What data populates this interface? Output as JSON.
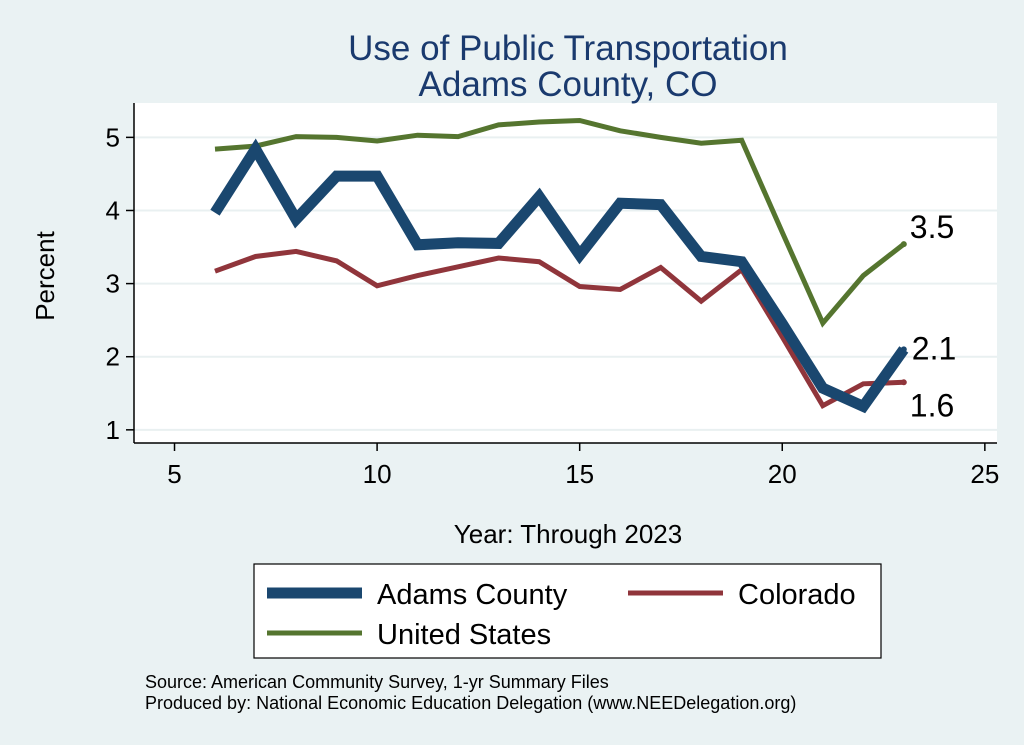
{
  "chart_data": {
    "type": "line",
    "title": [
      "Use of Public Transportation",
      "Adams County, CO"
    ],
    "xlabel": "Year: Through 2023",
    "ylabel": "Percent",
    "xlim": [
      4,
      25.3
    ],
    "ylim": [
      0.82,
      5.47
    ],
    "xticks": [
      5,
      10,
      15,
      20,
      25
    ],
    "yticks": [
      1,
      2,
      3,
      4,
      5
    ],
    "grid": true,
    "legend_position": "bottom",
    "x": [
      6,
      7,
      8,
      9,
      10,
      11,
      12,
      13,
      14,
      15,
      16,
      17,
      18,
      19,
      20,
      21,
      22,
      23
    ],
    "series": [
      {
        "name": "Adams County",
        "color": "#1a476f",
        "values": [
          3.97,
          4.84,
          3.88,
          4.47,
          4.47,
          3.53,
          3.56,
          3.55,
          4.19,
          3.39,
          4.1,
          4.08,
          3.37,
          3.3,
          2.45,
          1.57,
          1.32,
          2.1
        ],
        "end_label": "2.1"
      },
      {
        "name": "Colorado",
        "color": "#90353b",
        "values": [
          3.17,
          3.37,
          3.44,
          3.31,
          2.97,
          3.11,
          3.23,
          3.35,
          3.3,
          2.96,
          2.92,
          3.22,
          2.76,
          3.19,
          2.27,
          1.33,
          1.63,
          1.65
        ],
        "end_label": "1.6"
      },
      {
        "name": "United States",
        "color": "#55752f",
        "values": [
          4.84,
          4.88,
          5.01,
          5.0,
          4.95,
          5.03,
          5.01,
          5.17,
          5.21,
          5.23,
          5.09,
          5.0,
          4.92,
          4.96,
          3.7,
          2.46,
          3.11,
          3.54
        ],
        "end_label": "3.5"
      }
    ],
    "legend": [
      "Adams County",
      "Colorado",
      "United States"
    ],
    "notes": [
      "Source: American Community Survey, 1-yr Summary Files",
      "Produced by: National Economic Education Delegation (www.NEEDelegation.org)"
    ]
  }
}
